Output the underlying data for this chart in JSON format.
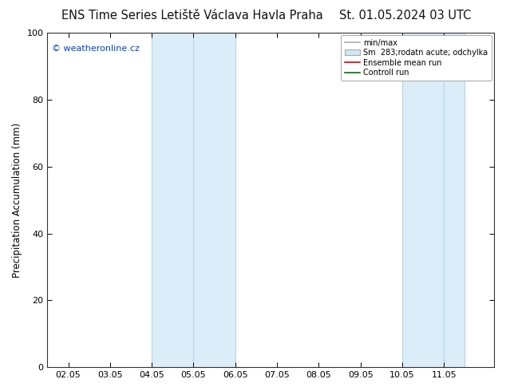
{
  "title_left": "ENS Time Series Letiště Václava Havla Praha",
  "title_right": "St. 01.05.2024 03 UTC",
  "ylabel": "Precipitation Accumulation (mm)",
  "ylim": [
    0,
    100
  ],
  "watermark": "© weatheronline.cz",
  "legend_entries": [
    {
      "label": "min/max",
      "color": "#aaaaaa",
      "lw": 1.2,
      "linestyle": "-",
      "type": "line"
    },
    {
      "label": "Sm  283;rodatn acute; odchylka",
      "color": "#d0e8f5",
      "edgecolor": "#aaaaaa",
      "type": "patch"
    },
    {
      "label": "Ensemble mean run",
      "color": "#dd0000",
      "lw": 1.2,
      "linestyle": "-",
      "type": "line"
    },
    {
      "label": "Controll run",
      "color": "#007700",
      "lw": 1.2,
      "linestyle": "-",
      "type": "line"
    }
  ],
  "x_tick_labels": [
    "02.05",
    "03.05",
    "04.05",
    "05.05",
    "06.05",
    "07.05",
    "08.05",
    "09.05",
    "10.05",
    "11.05"
  ],
  "x_tick_positions": [
    1,
    2,
    3,
    4,
    5,
    6,
    7,
    8,
    9,
    10
  ],
  "ytick_positions": [
    0,
    20,
    40,
    60,
    80,
    100
  ],
  "shaded_bands": [
    {
      "xmin": 3.0,
      "xmax": 4.0,
      "color": "#daedf8"
    },
    {
      "xmin": 4.0,
      "xmax": 5.0,
      "color": "#daedf8"
    },
    {
      "xmin": 9.0,
      "xmax": 10.0,
      "color": "#daedf8"
    },
    {
      "xmin": 10.0,
      "xmax": 10.5,
      "color": "#daedf8"
    }
  ],
  "band_dividers": [
    {
      "x": 3.0
    },
    {
      "x": 4.0
    },
    {
      "x": 5.0
    },
    {
      "x": 9.0
    },
    {
      "x": 10.0
    },
    {
      "x": 10.5
    }
  ],
  "bg_color": "#ffffff",
  "plot_bg_color": "#ffffff",
  "title_fontsize": 10.5,
  "axis_fontsize": 8.5,
  "tick_fontsize": 8,
  "xlim": [
    0.5,
    11.2
  ],
  "watermark_color": "#0044cc"
}
